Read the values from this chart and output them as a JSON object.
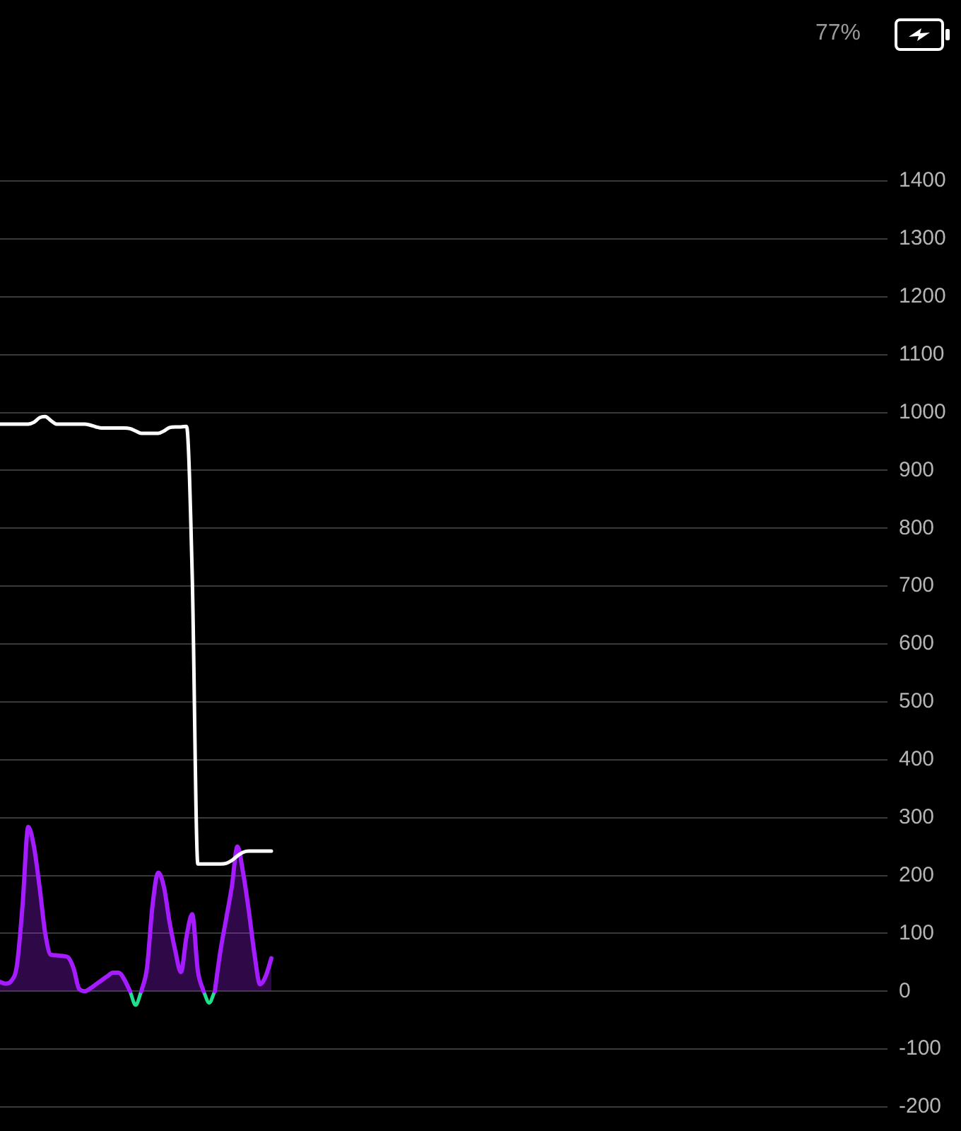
{
  "chart_data": {
    "type": "line",
    "categories": [
      null,
      null,
      null,
      null,
      null,
      null,
      null,
      null,
      null,
      null,
      null,
      null,
      null,
      null,
      null,
      null,
      null,
      null,
      null,
      null,
      null,
      null,
      null,
      null,
      null,
      null,
      null,
      null,
      null,
      null,
      null,
      null,
      null,
      null,
      null,
      null,
      null,
      null,
      null,
      null,
      null,
      null,
      null,
      null,
      null,
      null,
      null,
      null,
      null,
      null,
      null,
      null,
      null,
      null,
      null,
      null,
      null,
      null,
      null,
      null,
      null,
      null,
      null,
      null,
      null,
      null,
      null,
      null,
      null,
      null,
      null,
      null,
      null,
      null,
      null,
      null,
      null,
      null,
      null,
      null,
      null,
      null,
      null,
      null,
      null,
      null,
      null,
      null,
      null,
      null,
      null,
      null,
      null,
      null,
      null,
      null,
      null,
      null,
      null,
      null,
      null,
      null,
      null,
      null,
      null,
      null,
      null,
      null,
      null,
      null,
      null,
      null,
      null,
      null,
      null,
      null,
      null,
      null,
      null,
      null,
      null,
      null,
      null,
      null,
      null,
      null,
      null,
      null,
      null,
      null,
      null,
      null,
      null,
      null,
      null,
      null,
      null,
      null,
      null,
      null,
      null,
      null,
      null,
      null,
      null,
      null,
      null,
      null,
      null,
      null,
      null,
      null,
      null,
      null,
      null,
      null,
      null,
      null
    ],
    "series": [
      {
        "color": "#ffffff",
        "values": [
          980,
          980,
          980,
          980,
          980,
          980,
          983,
          991,
          993,
          986,
          980,
          980,
          980,
          980,
          980,
          980,
          978,
          975,
          973,
          973,
          973,
          973,
          973,
          972,
          968,
          964,
          964,
          964,
          964,
          968,
          974,
          975,
          975,
          976,
          720,
          220,
          220,
          220,
          220,
          220,
          221,
          226,
          234,
          240,
          242,
          242,
          242,
          242,
          242,
          null,
          null,
          null,
          null,
          null,
          null,
          null,
          null,
          null,
          null,
          null,
          null,
          null,
          null,
          null,
          null,
          null,
          null,
          null,
          null,
          null,
          null,
          null,
          null,
          null,
          null,
          null,
          null,
          null,
          null,
          null,
          null,
          null,
          null,
          null,
          null,
          null,
          null,
          null,
          null,
          null,
          null,
          null,
          null,
          null,
          null,
          null,
          null,
          null,
          null,
          null,
          null,
          null,
          null,
          null,
          null,
          null,
          null,
          null,
          null,
          null,
          null,
          null,
          null,
          null,
          null,
          null,
          null,
          null,
          null,
          null,
          null,
          null,
          null,
          null,
          null,
          null,
          null,
          null,
          null,
          null,
          null,
          null,
          null,
          null,
          null,
          null,
          null,
          null,
          null,
          null,
          null,
          null,
          null,
          null,
          null,
          null,
          null,
          null,
          null,
          null,
          null,
          null,
          null,
          null,
          null,
          null,
          null,
          null
        ]
      },
      {
        "type": "area",
        "color": "#a41cff",
        "values": [
          16,
          13,
          18,
          45,
          150,
          284,
          250,
          180,
          100,
          63,
          62,
          61,
          59,
          40,
          4,
          0,
          5,
          12,
          19,
          26,
          32,
          32,
          20,
          0,
          null,
          0,
          40,
          150,
          205,
          180,
          119,
          70,
          33,
          95,
          133,
          35,
          0,
          null,
          0,
          70,
          125,
          180,
          250,
          205,
          140,
          65,
          12,
          26,
          57,
          null,
          null,
          null,
          null,
          null,
          null,
          null,
          null,
          null,
          null,
          null,
          null,
          null,
          null,
          null,
          null,
          null,
          null,
          null,
          null,
          null,
          null,
          null,
          null,
          null,
          null,
          null,
          null,
          null,
          null,
          null,
          null,
          null,
          null,
          null,
          null,
          null,
          null,
          null,
          null,
          null,
          null,
          null,
          null,
          null,
          null,
          null,
          null,
          null,
          null,
          null,
          null,
          null,
          null,
          null,
          null,
          null,
          null,
          null,
          null,
          null,
          null,
          null,
          null,
          null,
          null,
          null,
          null,
          null,
          null,
          null,
          null,
          null,
          null,
          null,
          null,
          null,
          null,
          null,
          null,
          null,
          null,
          null,
          null,
          null,
          null,
          null,
          null,
          null,
          null,
          null,
          null,
          null,
          null,
          null,
          null,
          null,
          null,
          null,
          null,
          null,
          null,
          null,
          null,
          null,
          null,
          null,
          null,
          null
        ]
      },
      {
        "color": "#1fe08c",
        "values": [
          null,
          null,
          null,
          null,
          null,
          null,
          null,
          null,
          null,
          null,
          null,
          null,
          null,
          null,
          null,
          null,
          null,
          null,
          null,
          null,
          null,
          null,
          null,
          0,
          -24,
          0,
          null,
          null,
          null,
          null,
          null,
          null,
          null,
          null,
          null,
          null,
          0,
          -20,
          0,
          null,
          null,
          null,
          null,
          null,
          null,
          null,
          null,
          null,
          null,
          null,
          null,
          null,
          null,
          null,
          null,
          null,
          null,
          null,
          null,
          null,
          null,
          null,
          null,
          null,
          null,
          null,
          null,
          null,
          null,
          null,
          null,
          null,
          null,
          null,
          null,
          null,
          null,
          null,
          null,
          null,
          null,
          null,
          null,
          null,
          null,
          null,
          null,
          null,
          null,
          null,
          null,
          null,
          null,
          null,
          null,
          null,
          null,
          null,
          null,
          null,
          null,
          null,
          null,
          null,
          null,
          null,
          null,
          null,
          null,
          null,
          null,
          null,
          null,
          null,
          null,
          null,
          null,
          null,
          null,
          null,
          null,
          null,
          null,
          null,
          null,
          null,
          null,
          null,
          null,
          null,
          null,
          null,
          null,
          null,
          null,
          null,
          null,
          null,
          null,
          null,
          null,
          null,
          null,
          null,
          null,
          null,
          null,
          null,
          null,
          null,
          null,
          null,
          null,
          null,
          null,
          null,
          null,
          null
        ]
      }
    ],
    "ylim": [
      -200,
      1400
    ],
    "yticks": [
      -200,
      -100,
      0,
      100,
      200,
      300,
      400,
      500,
      600,
      700,
      800,
      900,
      1000,
      1100,
      1200,
      1300,
      1400
    ],
    "grid": "y",
    "tick_labels": "y",
    "marker": "none",
    "annotations": [
      "77%"
    ]
  }
}
